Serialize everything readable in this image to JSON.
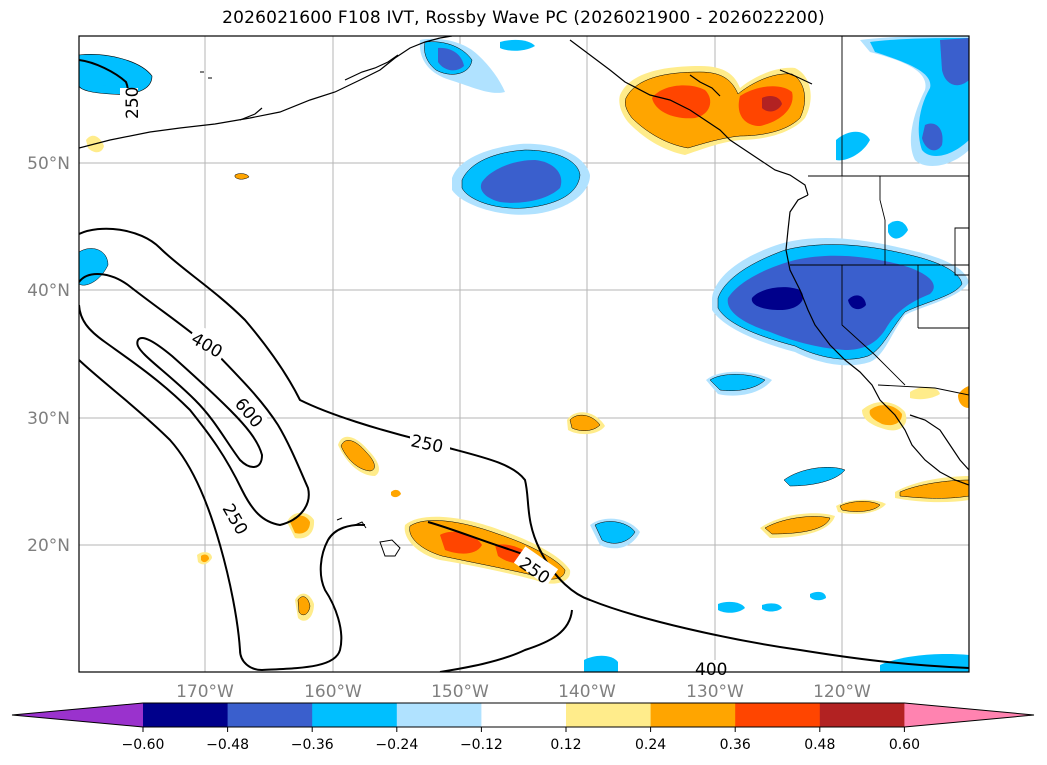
{
  "title": "2026021600 F108 IVT, Rossby Wave PC (2026021900 - 2026022200)",
  "axes": {
    "lat_labels": [
      "50°N",
      "40°N",
      "30°N",
      "20°N"
    ],
    "lon_labels": [
      "170°W",
      "160°W",
      "150°W",
      "140°W",
      "130°W",
      "120°W"
    ]
  },
  "contour_labels": {
    "c250_nw": "250",
    "c400_left": "400",
    "c600": "600",
    "c250_left": "250",
    "c250_center": "250",
    "c250_hawaii": "250",
    "c400_bottom": "400"
  },
  "colorbar": {
    "colors": [
      "#9a32cd",
      "#00008b",
      "#3a5fcd",
      "#00bfff",
      "#b0e2ff",
      "#ffffff",
      "#ffec8b",
      "#ffa500",
      "#ff4500",
      "#b22222",
      "#ff83b0"
    ],
    "tick_labels": [
      "−0.60",
      "−0.48",
      "−0.36",
      "−0.24",
      "−0.12",
      "0.12",
      "0.24",
      "0.36",
      "0.48",
      "0.60"
    ]
  }
}
